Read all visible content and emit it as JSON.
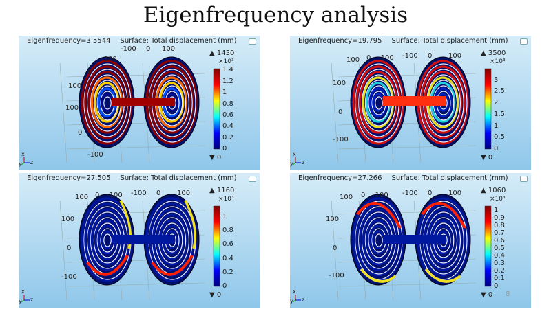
{
  "slide": {
    "title": "Eigenfrequency analysis",
    "page_number": "8"
  },
  "colors": {
    "jet": [
      "#00007f",
      "#0000ff",
      "#00ffff",
      "#ffff00",
      "#ff0000",
      "#7f0000"
    ],
    "panel_top": "#d6ecf8",
    "panel_bottom": "#8fc7ea"
  },
  "panels": [
    {
      "eigen": "Eigenfrequency=3.5544",
      "surface": "Surface: Total displacement (mm)",
      "max": "▲ 1430",
      "scale": "×10³",
      "min": "▼ 0",
      "cmax": 1.43,
      "ticks": [
        "0",
        "0.2",
        "0.4",
        "0.6",
        "0.8",
        "1",
        "1.2",
        "1.4"
      ],
      "axis_labels": [
        "-100",
        "0",
        "100",
        "-100",
        "0",
        "100",
        "100",
        "0",
        "-100"
      ]
    },
    {
      "eigen": "Eigenfrequency=19.795",
      "surface": "Surface: Total displacement (mm)",
      "max": "▲ 3500",
      "scale": "×10³",
      "min": "▼ 0",
      "cmax": 3.5,
      "ticks": [
        "0",
        "0.5",
        "1",
        "1.5",
        "2",
        "2.5",
        "3"
      ],
      "axis_labels": [
        "100",
        "0",
        "-100",
        "-100",
        "0",
        "100",
        "100",
        "0",
        "-100"
      ]
    },
    {
      "eigen": "Eigenfrequency=27.505",
      "surface": "Surface: Total displacement (mm)",
      "max": "▲ 1160",
      "scale": "×10³",
      "min": "▼ 0",
      "cmax": 1.16,
      "ticks": [
        "0",
        "0.2",
        "0.4",
        "0.6",
        "0.8",
        "1"
      ],
      "axis_labels": [
        "100",
        "0",
        "-100",
        "-100",
        "0",
        "100",
        "100",
        "0",
        "-100"
      ]
    },
    {
      "eigen": "Eigenfrequency=27.266",
      "surface": "Surface: Total displacement (mm)",
      "max": "▲ 1060",
      "scale": "×10³",
      "min": "▼ 0",
      "cmax": 1.06,
      "ticks": [
        "0",
        "0.1",
        "0.2",
        "0.3",
        "0.4",
        "0.5",
        "0.6",
        "0.7",
        "0.8",
        "0.9",
        "1"
      ],
      "axis_labels": [
        "100",
        "0",
        "-100",
        "-100",
        "0",
        "100",
        "100",
        "0",
        "-100"
      ]
    }
  ],
  "triad": {
    "x": "x",
    "y": "y",
    "z": "z"
  }
}
